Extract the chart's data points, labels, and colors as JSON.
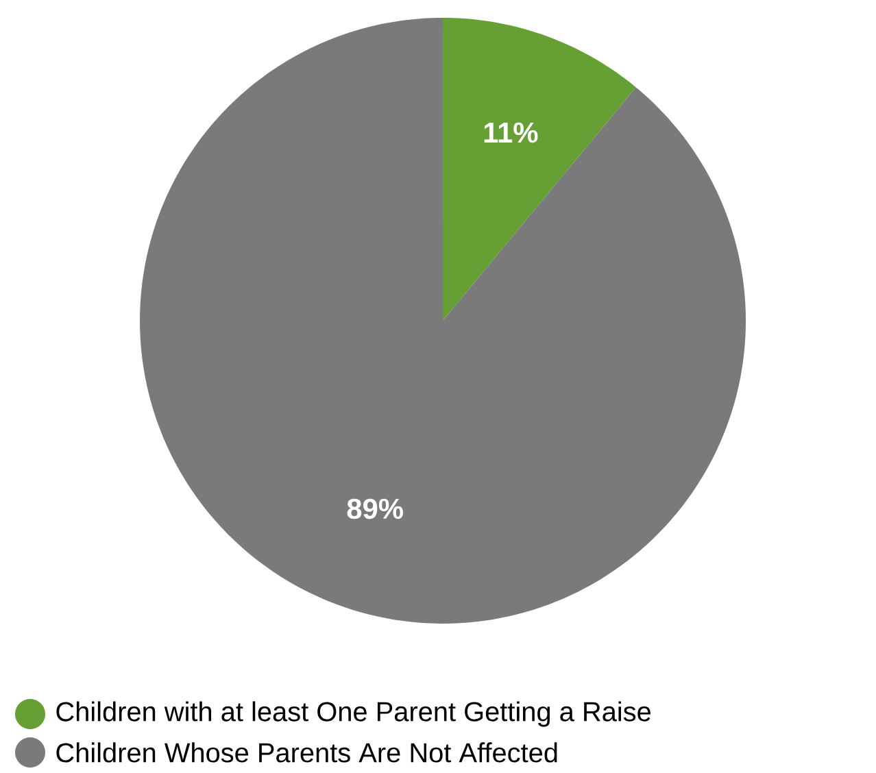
{
  "chart_data": {
    "type": "pie",
    "categories": [
      "Children with at least One Parent Getting a Raise",
      "Children Whose Parents Are Not Affected"
    ],
    "values": [
      11,
      89
    ],
    "colors": [
      "#66a035",
      "#7a7a7a"
    ],
    "value_labels": [
      "11%",
      "89%"
    ],
    "legend": "bottom"
  }
}
